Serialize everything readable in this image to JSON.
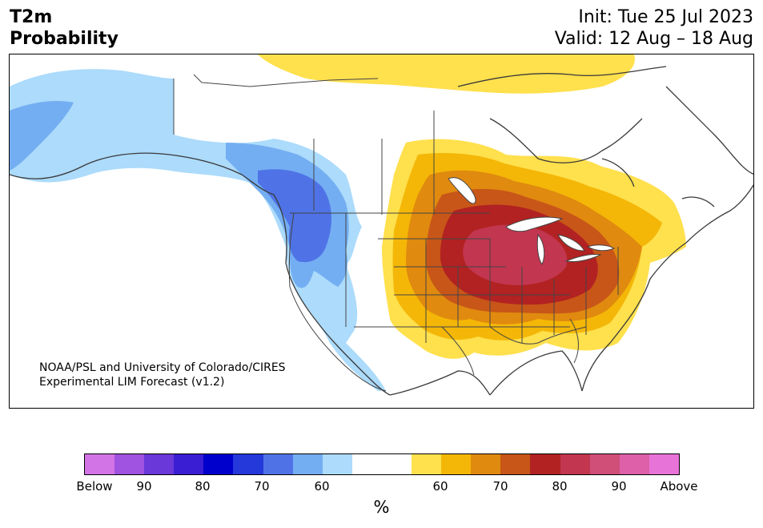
{
  "header": {
    "title_line1": "T2m",
    "title_line2": "Probability",
    "init": "Init: Tue 25 Jul 2023",
    "valid": "Valid: 12 Aug – 18 Aug"
  },
  "credit": {
    "line1": "NOAA/PSL and University of Colorado/CIRES",
    "line2": "Experimental LIM Forecast (v1.2)"
  },
  "colorbar": {
    "unit": "%",
    "colors": [
      "#d374e6",
      "#a052e0",
      "#6a38d8",
      "#3a1ed3",
      "#0000cd",
      "#2538d9",
      "#4f73e6",
      "#74aef2",
      "#acdbfb",
      "#ffffff",
      "#ffffff",
      "#ffe04d",
      "#f4b707",
      "#e08a0f",
      "#c85618",
      "#b22222",
      "#c23650",
      "#cf4f78",
      "#dd60a8",
      "#e873d8"
    ],
    "tick_labels": [
      "Below",
      "90",
      "80",
      "70",
      "60",
      "60",
      "70",
      "80",
      "90",
      "Above"
    ]
  },
  "map_colors": {
    "blue_light": "#acdbfb",
    "blue_mid": "#74aef2",
    "blue_dark": "#4f73e6",
    "yellow": "#ffe04d",
    "gold": "#f4b707",
    "orange": "#e08a0f",
    "burnt": "#c85618",
    "red": "#b22222",
    "crimson": "#c23650",
    "water": "#ffffff",
    "border": "#444444"
  }
}
